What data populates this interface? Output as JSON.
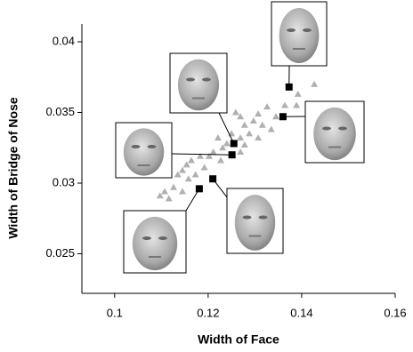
{
  "chart_data": {
    "type": "scatter",
    "x_label": "Width of Face",
    "y_label": "Width of Bridge of Nose",
    "xlim": [
      0.093,
      0.16
    ],
    "xticks": [
      0.1,
      0.12,
      0.14,
      0.16
    ],
    "ylim": [
      0.0222,
      0.04
    ],
    "yticks": [
      0.025,
      0.03,
      0.035,
      0.04
    ],
    "series": [
      {
        "color": "#b0b0b0",
        "marker": "triangle",
        "x": [
          0.1427,
          0.1392,
          0.1389,
          0.1326,
          0.1307,
          0.1297,
          0.1316,
          0.1335,
          0.1278,
          0.1269,
          0.1259,
          0.1288,
          0.1269,
          0.125,
          0.124,
          0.1231,
          0.1221,
          0.1211,
          0.1202,
          0.1227,
          0.1183,
          0.1164,
          0.1154,
          0.1145,
          0.1173,
          0.1192,
          0.1158,
          0.1135,
          0.1126,
          0.1107,
          0.1097,
          0.1116,
          0.1145,
          0.1269,
          0.1278,
          0.1307,
          0.1345,
          0.1364
        ],
        "values": [
          0.037,
          0.0363,
          0.0355,
          0.0354,
          0.0349,
          0.0344,
          0.0341,
          0.0338,
          0.0341,
          0.0347,
          0.035,
          0.0335,
          0.0332,
          0.0335,
          0.0328,
          0.0325,
          0.0332,
          0.0322,
          0.0319,
          0.0316,
          0.0319,
          0.0316,
          0.0313,
          0.0309,
          0.0306,
          0.0311,
          0.0303,
          0.0306,
          0.0297,
          0.0294,
          0.0291,
          0.0289,
          0.0294,
          0.0322,
          0.0327,
          0.0332,
          0.0347,
          0.0355
        ]
      },
      {
        "color": "#000000",
        "marker": "square",
        "x": [
          0.1373,
          0.136,
          0.1255,
          0.1251,
          0.121,
          0.1181
        ],
        "values": [
          0.0368,
          0.0347,
          0.0328,
          0.032,
          0.0303,
          0.0296
        ]
      }
    ]
  }
}
